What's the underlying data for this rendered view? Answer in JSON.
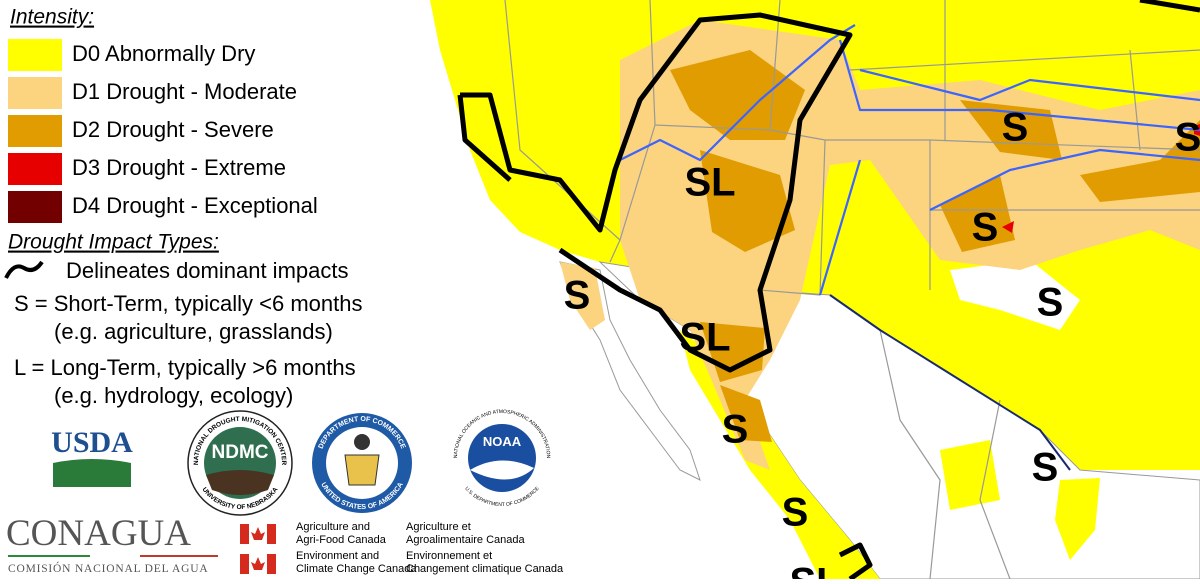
{
  "legend": {
    "title": "Intensity:",
    "items": [
      {
        "label": "D0 Abnormally Dry",
        "color": "#ffff00"
      },
      {
        "label": "D1 Drought - Moderate",
        "color": "#fcd37f"
      },
      {
        "label": "D2 Drought - Severe",
        "color": "#e09c00"
      },
      {
        "label": "D3 Drought - Extreme",
        "color": "#e60000"
      },
      {
        "label": "D4 Drought - Exceptional",
        "color": "#730000"
      }
    ]
  },
  "impacts": {
    "title": "Drought Impact Types:",
    "line_label": "Delineates dominant impacts",
    "short": "S = Short-Term, typically <6 months",
    "short_examples": "(e.g. agriculture, grasslands)",
    "long": "L = Long-Term, typically >6 months",
    "long_examples": "(e.g. hydrology, ecology)"
  },
  "logos": {
    "usda": "USDA",
    "ndmc": "NDMC",
    "ndmc_ring": "NATIONAL DROUGHT MITIGATION CENTER",
    "ndmc_bottom": "UNIVERSITY OF NEBRASKA",
    "commerce_ring": "DEPARTMENT OF COMMERCE",
    "commerce_bottom": "UNITED STATES OF AMERICA",
    "noaa": "NOAA",
    "noaa_ring": "NATIONAL OCEANIC AND ATMOSPHERIC ADMINISTRATION",
    "noaa_bottom": "U.S. DEPARTMENT OF COMMERCE"
  },
  "conagua": {
    "name": "CONAGUA",
    "subtitle": "COMISIÓN NACIONAL DEL AGUA"
  },
  "canada": {
    "agri_en": [
      "Agriculture and",
      "Agri-Food Canada"
    ],
    "agri_fr": [
      "Agriculture et",
      "Agroalimentaire Canada"
    ],
    "env_en": [
      "Environment and",
      "Climate Change Canada"
    ],
    "env_fr": [
      "Environnement et",
      "Changement climatique Canada"
    ]
  },
  "map_labels": [
    "SL",
    "S",
    "S",
    "S",
    "S",
    "S",
    "SL",
    "S",
    "S",
    "S",
    "SL"
  ]
}
